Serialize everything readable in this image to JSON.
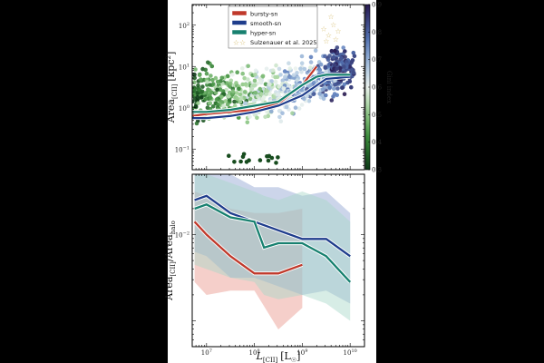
{
  "chart_data": [
    {
      "type": "scatter",
      "xlabel": "",
      "ylabel": "Area[CII] [kpc^2]",
      "ylabel_main": "Area",
      "ylabel_sub": "[CII]",
      "ylabel_unit": "[kpc",
      "ylabel_exp": "2",
      "ylabel_close": "]",
      "xlim_log10": [
        6.7,
        10.3
      ],
      "ylim_log10": [
        -1.5,
        2.5
      ],
      "ytick_labels": [
        {
          "pos": -1,
          "base": "10",
          "exp": "−1"
        },
        {
          "pos": 0,
          "base": "10",
          "exp": "0"
        },
        {
          "pos": 1,
          "base": "10",
          "exp": "1"
        },
        {
          "pos": 2,
          "base": "10",
          "exp": "2"
        }
      ],
      "colorbar": {
        "label": "Gini index",
        "range": [
          0.3,
          0.9
        ],
        "ticks": [
          "0.3",
          "0.4",
          "0.5",
          "0.6",
          "0.7",
          "0.8",
          "0.9"
        ]
      },
      "legend": [
        {
          "name": "bursty-sn",
          "color": "#c0392b",
          "kind": "line"
        },
        {
          "name": "smooth-sn",
          "color": "#1f3d8c",
          "kind": "line"
        },
        {
          "name": "hyper-sn",
          "color": "#17806f",
          "kind": "line"
        },
        {
          "name": "Sulzenauer et al. 2025",
          "color": "#d9c27a",
          "kind": "star"
        }
      ],
      "series": [
        {
          "name": "bursty-sn",
          "color": "#c0392b",
          "x": [
            6.7,
            7.0,
            7.5,
            8.0,
            8.5,
            9.0,
            9.3
          ],
          "y": [
            -0.2,
            -0.15,
            -0.1,
            -0.05,
            0.1,
            0.55,
            1.0
          ]
        },
        {
          "name": "smooth-sn",
          "color": "#1f3d8c",
          "x": [
            6.7,
            7.0,
            7.5,
            8.0,
            8.5,
            9.0,
            9.5,
            10.0
          ],
          "y": [
            -0.25,
            -0.25,
            -0.2,
            -0.1,
            0.05,
            0.3,
            0.7,
            0.75
          ]
        },
        {
          "name": "hyper-sn",
          "color": "#17806f",
          "x": [
            6.7,
            7.0,
            7.5,
            8.0,
            8.5,
            9.0,
            9.3,
            9.5,
            10.0
          ],
          "y": [
            -0.1,
            -0.1,
            -0.05,
            0.05,
            0.15,
            0.55,
            0.75,
            0.8,
            0.8
          ]
        }
      ],
      "stars_log": [
        {
          "x": 9.45,
          "y": 1.85
        },
        {
          "x": 9.55,
          "y": 1.7
        },
        {
          "x": 9.65,
          "y": 1.95
        },
        {
          "x": 9.7,
          "y": 1.6
        },
        {
          "x": 9.6,
          "y": 2.15
        },
        {
          "x": 9.75,
          "y": 1.8
        },
        {
          "x": 9.5,
          "y": 1.55
        }
      ]
    },
    {
      "type": "line",
      "xlabel": "L[CII] [L☉]",
      "xlabel_main": "L",
      "xlabel_sub": "[CII]",
      "xlabel_unit": "[L",
      "xlabel_unit_sub": "☉",
      "xlabel_close": "]",
      "ylabel": "Area[CII]/Areahalo",
      "ylabel_main": "Area",
      "ylabel_sub": "[CII]",
      "ylabel_mid": "/Area",
      "ylabel_sub2": "halo",
      "xlim_log10": [
        6.7,
        10.3
      ],
      "ylim_log10": [
        -3.3,
        -1.3
      ],
      "xtick_labels": [
        {
          "pos": 7,
          "base": "10",
          "exp": "7"
        },
        {
          "pos": 8,
          "base": "10",
          "exp": "8"
        },
        {
          "pos": 9,
          "base": "10",
          "exp": "9"
        },
        {
          "pos": 10,
          "base": "10",
          "exp": "10"
        }
      ],
      "ytick_labels": [
        {
          "pos": -2,
          "base": "10",
          "exp": "−2"
        }
      ],
      "series": [
        {
          "name": "bursty-sn",
          "color": "#c0392b",
          "band": "#e8948a",
          "x": [
            6.75,
            7.0,
            7.5,
            8.0,
            8.5,
            9.0
          ],
          "y": [
            -1.85,
            -2.0,
            -2.25,
            -2.45,
            -2.45,
            -2.35
          ],
          "lo": [
            -2.55,
            -2.7,
            -2.65,
            -2.65,
            -3.1,
            -2.85
          ],
          "hi": [
            -1.5,
            -1.55,
            -1.7,
            -1.75,
            -1.75,
            -1.7
          ]
        },
        {
          "name": "smooth-sn",
          "color": "#1f3d8c",
          "band": "#8fa1d0",
          "x": [
            6.75,
            7.0,
            7.5,
            8.0,
            8.5,
            9.0,
            9.5,
            10.0
          ],
          "y": [
            -1.6,
            -1.55,
            -1.75,
            -1.85,
            -1.95,
            -2.05,
            -2.05,
            -2.25
          ],
          "lo": [
            -2.2,
            -2.25,
            -2.5,
            -2.5,
            -2.6,
            -2.7,
            -2.65,
            -2.8
          ],
          "hi": [
            -1.2,
            -1.15,
            -1.3,
            -1.45,
            -1.45,
            -1.55,
            -1.5,
            -1.75
          ]
        },
        {
          "name": "hyper-sn",
          "color": "#17806f",
          "band": "#a6d6c8",
          "x": [
            6.75,
            7.0,
            7.5,
            8.0,
            8.2,
            8.5,
            9.0,
            9.5,
            10.0
          ],
          "y": [
            -1.7,
            -1.65,
            -1.8,
            -1.85,
            -2.15,
            -2.1,
            -2.1,
            -2.25,
            -2.55
          ],
          "lo": [
            -2.35,
            -2.4,
            -2.5,
            -2.55,
            -2.7,
            -2.75,
            -2.7,
            -2.8,
            -3.0
          ],
          "hi": [
            -1.3,
            -1.3,
            -1.4,
            -1.5,
            -1.55,
            -1.6,
            -1.5,
            -1.6,
            -1.85
          ]
        }
      ]
    }
  ]
}
